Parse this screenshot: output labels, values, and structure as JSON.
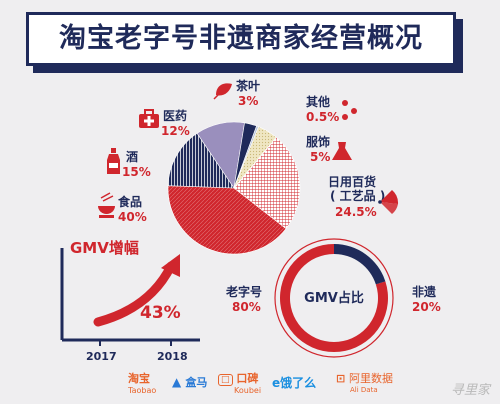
{
  "title": "淘宝老字号非遗商家经营概况",
  "chart_data": [
    {
      "type": "pie",
      "title": "",
      "slices": [
        {
          "name": "食品",
          "value": 40,
          "label": "40%",
          "color": "#d0262d"
        },
        {
          "name": "酒",
          "value": 15,
          "label": "15%",
          "color": "#1f2a5a"
        },
        {
          "name": "医药",
          "value": 12,
          "label": "12%",
          "color": "#9a8fbd"
        },
        {
          "name": "茶叶",
          "value": 3,
          "label": "3%",
          "color": "#1f2a5a"
        },
        {
          "name": "其他",
          "value": 0.5,
          "label": "0.5%",
          "color": "#b8c4dc"
        },
        {
          "name": "服饰",
          "value": 5,
          "label": "5%",
          "color": "#ece3bd"
        },
        {
          "name": "日用百货",
          "sublabel": "( 工艺品 )",
          "value": 24.5,
          "label": "24.5%",
          "color": "#e8a1a6"
        }
      ]
    },
    {
      "type": "line",
      "title": "GMV增幅",
      "categories": [
        "2017",
        "2018"
      ],
      "annotation": "43%"
    },
    {
      "type": "pie",
      "title": "GMV占比",
      "slices": [
        {
          "name": "老字号",
          "value": 80,
          "label": "80%",
          "color": "#d0262d"
        },
        {
          "name": "非遗",
          "value": 20,
          "label": "20%",
          "color": "#1f2a5a"
        }
      ]
    }
  ],
  "logos": [
    "淘宝",
    "Taobao",
    "盒马",
    "口碑",
    "Koubei",
    "饿了么",
    "阿里数据",
    "Ali Data"
  ],
  "watermark": "寻里家",
  "icons": [
    "cross-icon",
    "leaf-icon",
    "dots-icon",
    "bottle-icon",
    "dress-icon",
    "bowl-icon",
    "fan-icon",
    "arrow-icon"
  ]
}
